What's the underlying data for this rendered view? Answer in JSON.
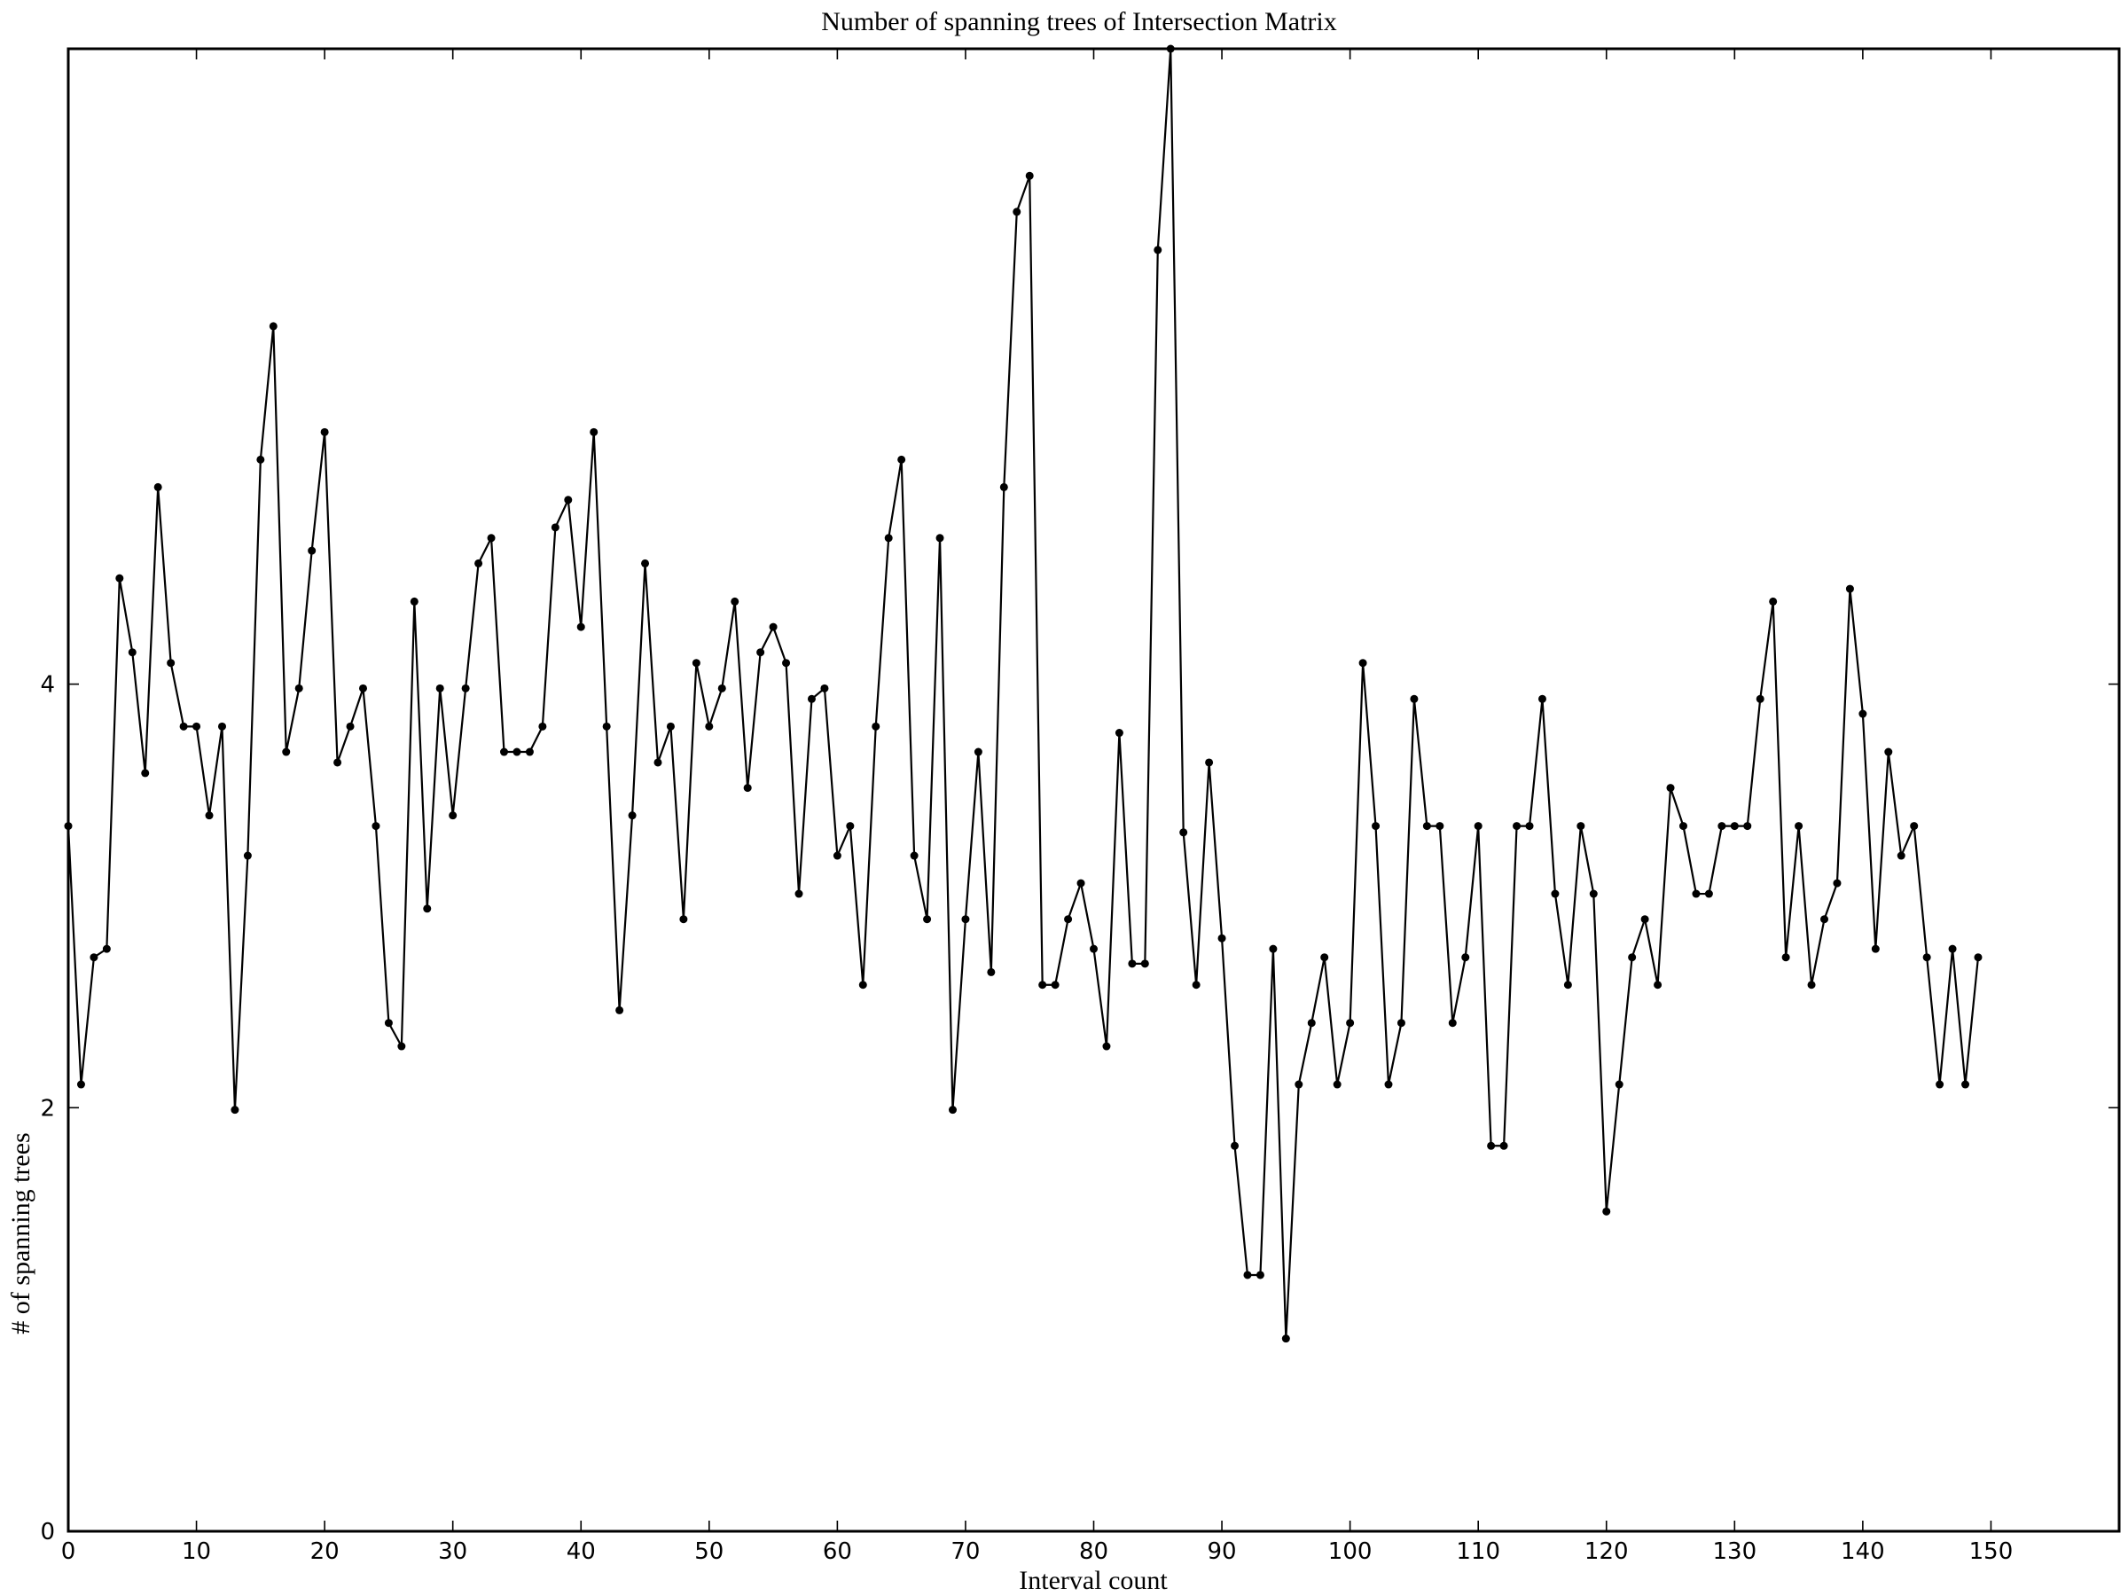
{
  "chart_data": {
    "type": "line",
    "title": "Number of spanning trees of Intersection Matrix",
    "xlabel": "Interval count",
    "ylabel": "# of spanning trees",
    "xlim": [
      0,
      160
    ],
    "ylim": [
      0,
      7
    ],
    "xticks": [
      0,
      10,
      20,
      30,
      40,
      50,
      60,
      70,
      80,
      90,
      100,
      110,
      120,
      130,
      140,
      150
    ],
    "yticks": [
      0,
      2,
      4
    ],
    "grid": false,
    "legend": "none",
    "line_color": "#000000",
    "marker": "circle",
    "series": [
      {
        "x": [
          0,
          1,
          2,
          3,
          4,
          5,
          6,
          7,
          8,
          9,
          10,
          11,
          12,
          13,
          14,
          15,
          16,
          17,
          18,
          19,
          20,
          21,
          22,
          23,
          24,
          25,
          26,
          27,
          28,
          29,
          30,
          31,
          32,
          33,
          34,
          35,
          36,
          37,
          38,
          39,
          40,
          41,
          42,
          43,
          44,
          45,
          46,
          47,
          48,
          49,
          50,
          51,
          52,
          53,
          54,
          55,
          56,
          57,
          58,
          59,
          60,
          61,
          62,
          63,
          64,
          65,
          66,
          67,
          68,
          69,
          70,
          71,
          72,
          73,
          74,
          75,
          76,
          77,
          78,
          79,
          80,
          81,
          82,
          83,
          84,
          85,
          86,
          87,
          88,
          89,
          90,
          91,
          92,
          93,
          94,
          95,
          96,
          97,
          98,
          99,
          100,
          101,
          102,
          103,
          104,
          105,
          106,
          107,
          108,
          109,
          110,
          111,
          112,
          113,
          114,
          115,
          116,
          117,
          118,
          119,
          120,
          121,
          122,
          123,
          124,
          125,
          126,
          127,
          128,
          129,
          130,
          131,
          132,
          133,
          134,
          135,
          136,
          137,
          138,
          139,
          140,
          141,
          142,
          143,
          144,
          145,
          146,
          147,
          148,
          149
        ],
        "values": [
          3.33,
          2.11,
          2.71,
          2.75,
          4.5,
          4.15,
          3.58,
          4.93,
          4.1,
          3.8,
          3.8,
          3.38,
          3.8,
          1.99,
          3.19,
          5.06,
          5.69,
          3.68,
          3.98,
          4.63,
          5.19,
          3.63,
          3.8,
          3.98,
          3.33,
          2.4,
          2.29,
          4.39,
          2.94,
          3.98,
          3.38,
          3.98,
          4.57,
          4.69,
          3.68,
          3.68,
          3.68,
          3.8,
          4.74,
          4.87,
          4.27,
          5.19,
          3.8,
          2.46,
          3.38,
          4.57,
          3.63,
          3.8,
          2.89,
          4.1,
          3.8,
          3.98,
          4.39,
          3.51,
          4.15,
          4.27,
          4.1,
          3.01,
          3.93,
          3.98,
          3.19,
          3.33,
          2.58,
          3.8,
          4.69,
          5.06,
          3.19,
          2.89,
          4.69,
          1.99,
          2.89,
          3.68,
          2.64,
          4.93,
          6.23,
          6.4,
          2.58,
          2.58,
          2.89,
          3.06,
          2.75,
          2.29,
          3.77,
          2.68,
          2.68,
          6.05,
          7.0,
          3.3,
          2.58,
          3.63,
          2.8,
          1.82,
          1.21,
          1.21,
          2.75,
          0.91,
          2.11,
          2.4,
          2.71,
          2.11,
          2.4,
          4.1,
          3.33,
          2.11,
          2.4,
          3.93,
          3.33,
          3.33,
          2.4,
          2.71,
          3.33,
          1.82,
          1.82,
          3.33,
          3.33,
          3.93,
          3.01,
          2.58,
          3.33,
          3.01,
          1.51,
          2.11,
          2.71,
          2.89,
          2.58,
          3.51,
          3.33,
          3.01,
          3.01,
          3.33,
          3.33,
          3.33,
          3.93,
          4.39,
          2.71,
          3.33,
          2.58,
          2.89,
          3.06,
          4.45,
          3.86,
          2.75,
          3.68,
          3.19,
          3.33,
          2.71,
          2.11,
          2.75,
          2.11,
          2.71
        ]
      }
    ]
  }
}
